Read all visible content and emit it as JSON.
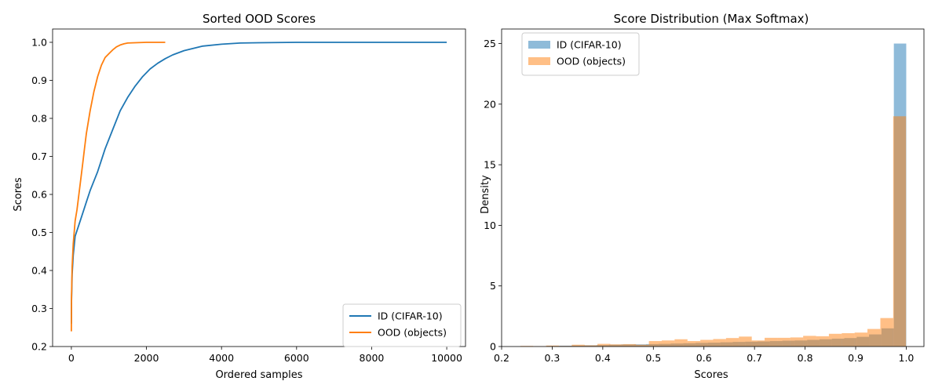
{
  "chart_data": [
    {
      "type": "line",
      "title": "Sorted OOD Scores",
      "xlabel": "Ordered samples",
      "ylabel": "Scores",
      "xlim": [
        -500,
        10500
      ],
      "ylim": [
        0.2,
        1.035
      ],
      "xticks": [
        0,
        2000,
        4000,
        6000,
        8000,
        10000
      ],
      "yticks": [
        0.2,
        0.3,
        0.4,
        0.5,
        0.6,
        0.7,
        0.8,
        0.9,
        1.0
      ],
      "legend": "lower-right",
      "series": [
        {
          "name": "ID (CIFAR-10)",
          "color": "#1f77b4",
          "x": [
            0,
            5,
            20,
            50,
            100,
            200,
            300,
            400,
            500,
            700,
            900,
            1100,
            1300,
            1500,
            1700,
            1900,
            2100,
            2300,
            2500,
            2700,
            3000,
            3500,
            4000,
            4500,
            5000,
            6000,
            8000,
            10000
          ],
          "y": [
            0.26,
            0.32,
            0.39,
            0.44,
            0.49,
            0.52,
            0.55,
            0.58,
            0.61,
            0.66,
            0.72,
            0.77,
            0.82,
            0.855,
            0.885,
            0.91,
            0.93,
            0.945,
            0.957,
            0.967,
            0.978,
            0.99,
            0.995,
            0.998,
            0.999,
            1.0,
            1.0,
            1.0
          ]
        },
        {
          "name": "OOD (objects)",
          "color": "#ff7f0e",
          "x": [
            0,
            5,
            20,
            50,
            100,
            150,
            200,
            250,
            300,
            350,
            400,
            500,
            600,
            700,
            800,
            900,
            1000,
            1100,
            1200,
            1300,
            1400,
            1500,
            1700,
            2000,
            2500
          ],
          "y": [
            0.24,
            0.33,
            0.41,
            0.47,
            0.53,
            0.56,
            0.6,
            0.64,
            0.68,
            0.72,
            0.76,
            0.82,
            0.87,
            0.91,
            0.94,
            0.96,
            0.97,
            0.98,
            0.988,
            0.993,
            0.996,
            0.998,
            0.999,
            1.0,
            1.0
          ]
        }
      ]
    },
    {
      "type": "bar",
      "title": "Score Distribution (Max Softmax)",
      "xlabel": "Scores",
      "ylabel": "Density",
      "xlim": [
        0.2,
        1.035
      ],
      "ylim": [
        0,
        26.2
      ],
      "xticks": [
        0.2,
        0.3,
        0.4,
        0.5,
        0.6,
        0.7,
        0.8,
        0.9,
        1.0
      ],
      "yticks": [
        0,
        5,
        10,
        15,
        20,
        25
      ],
      "legend": "upper-left",
      "series": [
        {
          "name": "ID (CIFAR-10)",
          "color": "#1f77b4",
          "opacity": 0.5,
          "bins": [
            0.265,
            0.2895,
            0.314,
            0.3385,
            0.363,
            0.3875,
            0.412,
            0.4365,
            0.461,
            0.4855,
            0.51,
            0.5345,
            0.559,
            0.5835,
            0.608,
            0.6325,
            0.657,
            0.6815,
            0.706,
            0.7305,
            0.755,
            0.7795,
            0.804,
            0.8285,
            0.853,
            0.8775,
            0.902,
            0.9265,
            0.951,
            0.9755,
            1.0
          ],
          "values": [
            0.03,
            0.05,
            0.07,
            0.08,
            0.1,
            0.12,
            0.15,
            0.17,
            0.18,
            0.2,
            0.22,
            0.25,
            0.27,
            0.3,
            0.32,
            0.35,
            0.38,
            0.4,
            0.42,
            0.45,
            0.48,
            0.5,
            0.55,
            0.6,
            0.65,
            0.7,
            0.8,
            1.0,
            1.5,
            25.0
          ]
        },
        {
          "name": "OOD (objects)",
          "color": "#ff7f0e",
          "opacity": 0.5,
          "bins": [
            0.237,
            0.2624,
            0.2878,
            0.3133,
            0.3387,
            0.3641,
            0.3895,
            0.4149,
            0.4404,
            0.4658,
            0.4912,
            0.5166,
            0.542,
            0.5675,
            0.5929,
            0.6183,
            0.6437,
            0.6691,
            0.6946,
            0.72,
            0.7454,
            0.7708,
            0.7962,
            0.8217,
            0.8471,
            0.8725,
            0.8979,
            0.9233,
            0.9488,
            0.9742,
            0.9996
          ],
          "values": [
            0.05,
            0.03,
            0.08,
            0.05,
            0.15,
            0.1,
            0.22,
            0.18,
            0.2,
            0.15,
            0.45,
            0.5,
            0.6,
            0.45,
            0.55,
            0.62,
            0.7,
            0.82,
            0.5,
            0.72,
            0.72,
            0.75,
            0.88,
            0.85,
            1.05,
            1.1,
            1.15,
            1.45,
            2.35,
            19.0
          ]
        }
      ]
    }
  ]
}
